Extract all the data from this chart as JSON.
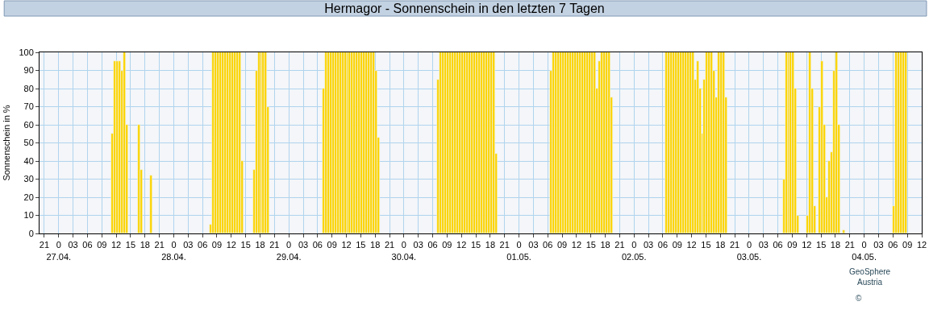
{
  "chart_data": {
    "type": "bar",
    "title": "Hermagor - Sonnenschein in den letzten 7 Tagen",
    "ylabel": "Sonnenschein in %",
    "annotations": [
      "GeoSphere\nAustria",
      "©"
    ],
    "x": [
      "--04-27T11:15",
      "--04-27T11:45",
      "--04-27T12:15",
      "--04-27T12:45",
      "--04-27T13:15",
      "--04-27T13:45",
      "--04-27T14:15",
      "--04-27T16:45",
      "--04-27T17:15",
      "--04-27T19:15",
      "--04-28T07:45",
      "--04-28T08:15",
      "--04-28T08:45",
      "--04-28T09:15",
      "--04-28T09:45",
      "--04-28T10:15",
      "--04-28T10:45",
      "--04-28T11:15",
      "--04-28T11:45",
      "--04-28T12:15",
      "--04-28T12:45",
      "--04-28T13:15",
      "--04-28T13:45",
      "--04-28T14:15",
      "--04-28T16:45",
      "--04-28T17:15",
      "--04-28T17:45",
      "--04-28T18:15",
      "--04-28T18:45",
      "--04-28T19:15",
      "--04-28T19:45",
      "--04-29T07:15",
      "--04-29T07:45",
      "--04-29T08:15",
      "--04-29T08:45",
      "--04-29T09:15",
      "--04-29T09:45",
      "--04-29T10:15",
      "--04-29T10:45",
      "--04-29T11:15",
      "--04-29T11:45",
      "--04-29T12:15",
      "--04-29T12:45",
      "--04-29T13:15",
      "--04-29T13:45",
      "--04-29T14:15",
      "--04-29T14:45",
      "--04-29T15:15",
      "--04-29T15:45",
      "--04-29T16:15",
      "--04-29T16:45",
      "--04-29T17:15",
      "--04-29T17:45",
      "--04-29T18:15",
      "--04-29T18:45",
      "--04-30T07:15",
      "--04-30T07:45",
      "--04-30T08:15",
      "--04-30T08:45",
      "--04-30T09:15",
      "--04-30T09:45",
      "--04-30T10:15",
      "--04-30T10:45",
      "--04-30T11:15",
      "--04-30T11:45",
      "--04-30T12:15",
      "--04-30T12:45",
      "--04-30T13:15",
      "--04-30T13:45",
      "--04-30T14:15",
      "--04-30T14:45",
      "--04-30T15:15",
      "--04-30T15:45",
      "--04-30T16:15",
      "--04-30T16:45",
      "--04-30T17:15",
      "--04-30T17:45",
      "--04-30T18:15",
      "--04-30T18:45",
      "--04-30T19:15",
      "--05-01T06:45",
      "--05-01T07:15",
      "--05-01T07:45",
      "--05-01T08:15",
      "--05-01T08:45",
      "--05-01T09:15",
      "--05-01T09:45",
      "--05-01T10:15",
      "--05-01T10:45",
      "--05-01T11:15",
      "--05-01T11:45",
      "--05-01T12:15",
      "--05-01T12:45",
      "--05-01T13:15",
      "--05-01T13:45",
      "--05-01T14:15",
      "--05-01T14:45",
      "--05-01T15:15",
      "--05-01T15:45",
      "--05-01T16:15",
      "--05-01T16:45",
      "--05-01T17:15",
      "--05-01T17:45",
      "--05-01T18:15",
      "--05-01T18:45",
      "--05-01T19:15",
      "--05-02T06:45",
      "--05-02T07:15",
      "--05-02T07:45",
      "--05-02T08:15",
      "--05-02T08:45",
      "--05-02T09:15",
      "--05-02T09:45",
      "--05-02T10:15",
      "--05-02T10:45",
      "--05-02T11:15",
      "--05-02T11:45",
      "--05-02T12:15",
      "--05-02T12:45",
      "--05-02T13:15",
      "--05-02T13:45",
      "--05-02T14:15",
      "--05-02T14:45",
      "--05-02T15:15",
      "--05-02T15:45",
      "--05-02T16:15",
      "--05-02T16:45",
      "--05-02T17:15",
      "--05-02T17:45",
      "--05-02T18:15",
      "--05-02T18:45",
      "--05-02T19:15",
      "--05-03T07:15",
      "--05-03T07:45",
      "--05-03T08:15",
      "--05-03T08:45",
      "--05-03T09:15",
      "--05-03T09:45",
      "--05-03T10:15",
      "--05-03T12:15",
      "--05-03T12:45",
      "--05-03T13:15",
      "--05-03T13:45",
      "--05-03T14:45",
      "--05-03T15:15",
      "--05-03T15:45",
      "--05-03T16:15",
      "--05-03T16:45",
      "--05-03T17:15",
      "--05-03T17:45",
      "--05-03T18:15",
      "--05-03T18:45",
      "--05-03T19:45",
      "--05-04T06:15",
      "--05-04T06:45",
      "--05-04T07:15",
      "--05-04T07:45",
      "--05-04T08:15",
      "--05-04T08:45"
    ],
    "values": [
      55,
      95,
      95,
      95,
      90,
      100,
      60,
      60,
      35,
      32,
      5,
      100,
      100,
      100,
      100,
      100,
      100,
      100,
      100,
      100,
      100,
      100,
      100,
      40,
      35,
      90,
      100,
      100,
      100,
      100,
      70,
      80,
      100,
      100,
      100,
      100,
      100,
      100,
      100,
      100,
      100,
      100,
      100,
      100,
      100,
      100,
      100,
      100,
      100,
      100,
      100,
      100,
      100,
      90,
      53,
      85,
      100,
      100,
      100,
      100,
      100,
      100,
      100,
      100,
      100,
      100,
      100,
      100,
      100,
      100,
      100,
      100,
      100,
      100,
      100,
      100,
      100,
      100,
      100,
      44,
      90,
      100,
      100,
      100,
      100,
      100,
      100,
      100,
      100,
      100,
      100,
      100,
      100,
      100,
      100,
      100,
      100,
      100,
      100,
      80,
      95,
      100,
      100,
      100,
      100,
      75,
      100,
      100,
      100,
      100,
      100,
      100,
      100,
      100,
      100,
      100,
      100,
      100,
      85,
      95,
      80,
      55,
      85,
      100,
      100,
      100,
      90,
      75,
      100,
      100,
      100,
      75,
      30,
      100,
      100,
      100,
      100,
      80,
      10,
      10,
      100,
      80,
      15,
      70,
      95,
      60,
      20,
      40,
      45,
      90,
      100,
      60,
      2,
      15,
      100,
      100,
      100,
      100,
      100
    ],
    "color": "#fcd400",
    "xlim": [
      "--04-26T20:00",
      "--05-04T12:00"
    ],
    "xticks": [
      {
        "value": "--04-26T21:00",
        "label": "21"
      },
      {
        "value": "--04-27T00:00",
        "label": "0\n27.04."
      },
      {
        "value": "--04-27T03:00",
        "label": "03"
      },
      {
        "value": "--04-27T06:00",
        "label": "06"
      },
      {
        "value": "--04-27T09:00",
        "label": "09"
      },
      {
        "value": "--04-27T12:00",
        "label": "12"
      },
      {
        "value": "--04-27T15:00",
        "label": "15"
      },
      {
        "value": "--04-27T18:00",
        "label": "18"
      },
      {
        "value": "--04-27T21:00",
        "label": "21"
      },
      {
        "value": "--04-28T00:00",
        "label": "0\n28.04."
      },
      {
        "value": "--04-28T03:00",
        "label": "03"
      },
      {
        "value": "--04-28T06:00",
        "label": "06"
      },
      {
        "value": "--04-28T09:00",
        "label": "09"
      },
      {
        "value": "--04-28T12:00",
        "label": "12"
      },
      {
        "value": "--04-28T15:00",
        "label": "15"
      },
      {
        "value": "--04-28T18:00",
        "label": "18"
      },
      {
        "value": "--04-28T21:00",
        "label": "21"
      },
      {
        "value": "--04-29T00:00",
        "label": "0\n29.04."
      },
      {
        "value": "--04-29T03:00",
        "label": "03"
      },
      {
        "value": "--04-29T06:00",
        "label": "06"
      },
      {
        "value": "--04-29T09:00",
        "label": "09"
      },
      {
        "value": "--04-29T12:00",
        "label": "12"
      },
      {
        "value": "--04-29T15:00",
        "label": "15"
      },
      {
        "value": "--04-29T18:00",
        "label": "18"
      },
      {
        "value": "--04-29T21:00",
        "label": "21"
      },
      {
        "value": "--04-30T00:00",
        "label": "0\n30.04."
      },
      {
        "value": "--04-30T03:00",
        "label": "03"
      },
      {
        "value": "--04-30T06:00",
        "label": "06"
      },
      {
        "value": "--04-30T09:00",
        "label": "09"
      },
      {
        "value": "--04-30T12:00",
        "label": "12"
      },
      {
        "value": "--04-30T15:00",
        "label": "15"
      },
      {
        "value": "--04-30T18:00",
        "label": "18"
      },
      {
        "value": "--04-30T21:00",
        "label": "21"
      },
      {
        "value": "--05-01T00:00",
        "label": "0\n01.05."
      },
      {
        "value": "--05-01T03:00",
        "label": "03"
      },
      {
        "value": "--05-01T06:00",
        "label": "06"
      },
      {
        "value": "--05-01T09:00",
        "label": "09"
      },
      {
        "value": "--05-01T12:00",
        "label": "12"
      },
      {
        "value": "--05-01T15:00",
        "label": "15"
      },
      {
        "value": "--05-01T18:00",
        "label": "18"
      },
      {
        "value": "--05-01T21:00",
        "label": "21"
      },
      {
        "value": "--05-02T00:00",
        "label": "0\n02.05."
      },
      {
        "value": "--05-02T03:00",
        "label": "03"
      },
      {
        "value": "--05-02T06:00",
        "label": "06"
      },
      {
        "value": "--05-02T09:00",
        "label": "09"
      },
      {
        "value": "--05-02T12:00",
        "label": "12"
      },
      {
        "value": "--05-02T15:00",
        "label": "15"
      },
      {
        "value": "--05-02T18:00",
        "label": "18"
      },
      {
        "value": "--05-02T21:00",
        "label": "21"
      },
      {
        "value": "--05-03T00:00",
        "label": "0\n03.05."
      },
      {
        "value": "--05-03T03:00",
        "label": "03"
      },
      {
        "value": "--05-03T06:00",
        "label": "06"
      },
      {
        "value": "--05-03T09:00",
        "label": "09"
      },
      {
        "value": "--05-03T12:00",
        "label": "12"
      },
      {
        "value": "--05-03T15:00",
        "label": "15"
      },
      {
        "value": "--05-03T18:00",
        "label": "18"
      },
      {
        "value": "--05-03T21:00",
        "label": "21"
      },
      {
        "value": "--05-04T00:00",
        "label": "0\n04.05."
      },
      {
        "value": "--05-04T03:00",
        "label": "03"
      },
      {
        "value": "--05-04T06:00",
        "label": "06"
      },
      {
        "value": "--05-04T09:00",
        "label": "09"
      },
      {
        "value": "--05-04T12:00",
        "label": "12"
      }
    ],
    "ylim": [
      0,
      100
    ],
    "yticks": [
      0,
      10,
      20,
      30,
      40,
      50,
      60,
      70,
      80,
      90,
      100
    ],
    "grid": true
  }
}
